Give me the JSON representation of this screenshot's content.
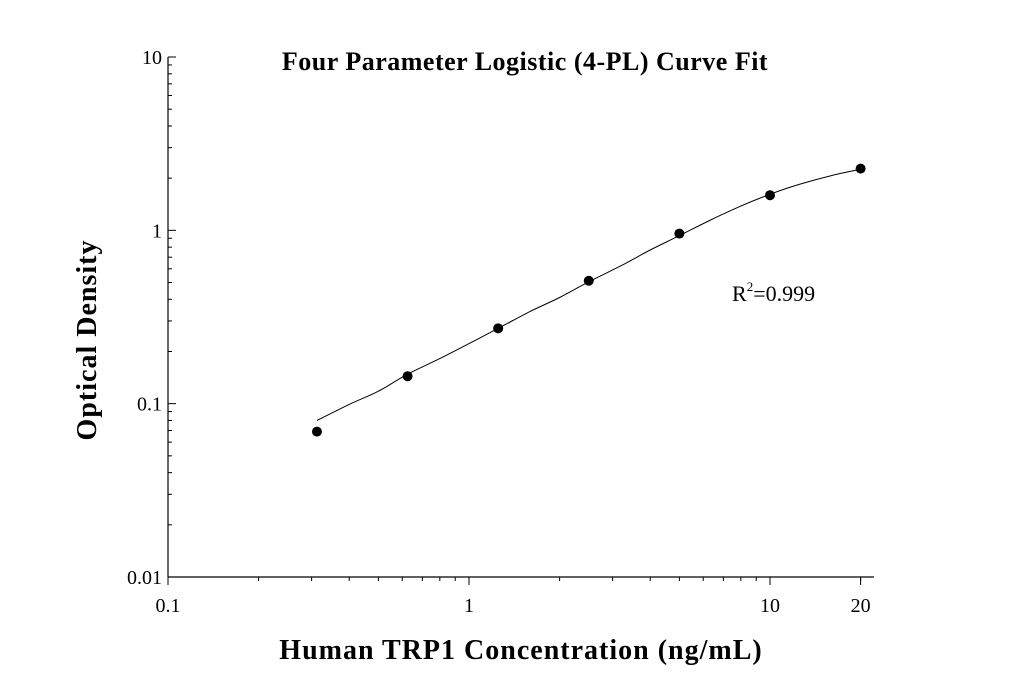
{
  "chart_data": {
    "type": "scatter",
    "title": "Four Parameter Logistic (4-PL) Curve Fit",
    "xlabel": "Human TRP1 Concentration (ng/mL)",
    "ylabel": "Optical Density",
    "x_scale": "log",
    "y_scale": "log",
    "xlim": [
      0.1,
      25
    ],
    "ylim": [
      0.01,
      10
    ],
    "x_ticks": [
      0.1,
      1,
      10,
      20
    ],
    "x_tick_labels": [
      "0.1",
      "1",
      "10",
      "20"
    ],
    "y_ticks": [
      0.01,
      0.1,
      1,
      10
    ],
    "y_tick_labels": [
      "0.01",
      "0.1",
      "1",
      "10"
    ],
    "grid": false,
    "series": [
      {
        "x": [
          0.3125,
          0.625,
          1.25,
          2.5,
          5,
          10,
          20
        ],
        "y": [
          0.069,
          0.144,
          0.272,
          0.512,
          0.958,
          1.595,
          2.27
        ],
        "marker": "circle",
        "color": "#000000"
      }
    ],
    "fit_curve": {
      "model": "4PL",
      "color": "#000000",
      "x": [
        0.3125,
        0.4,
        0.5,
        0.625,
        0.8,
        1.0,
        1.25,
        1.6,
        2.0,
        2.5,
        3.2,
        4.0,
        5.0,
        6.3,
        8.0,
        10.0,
        12.5,
        16.0,
        20.0
      ],
      "y": [
        0.08,
        0.099,
        0.118,
        0.148,
        0.182,
        0.222,
        0.272,
        0.341,
        0.41,
        0.505,
        0.625,
        0.77,
        0.932,
        1.14,
        1.38,
        1.615,
        1.84,
        2.07,
        2.25
      ]
    },
    "annotations": [
      {
        "text": "R",
        "superscript": "2",
        "suffix": "=0.999",
        "x": 7.4,
        "y": 0.3
      }
    ]
  }
}
